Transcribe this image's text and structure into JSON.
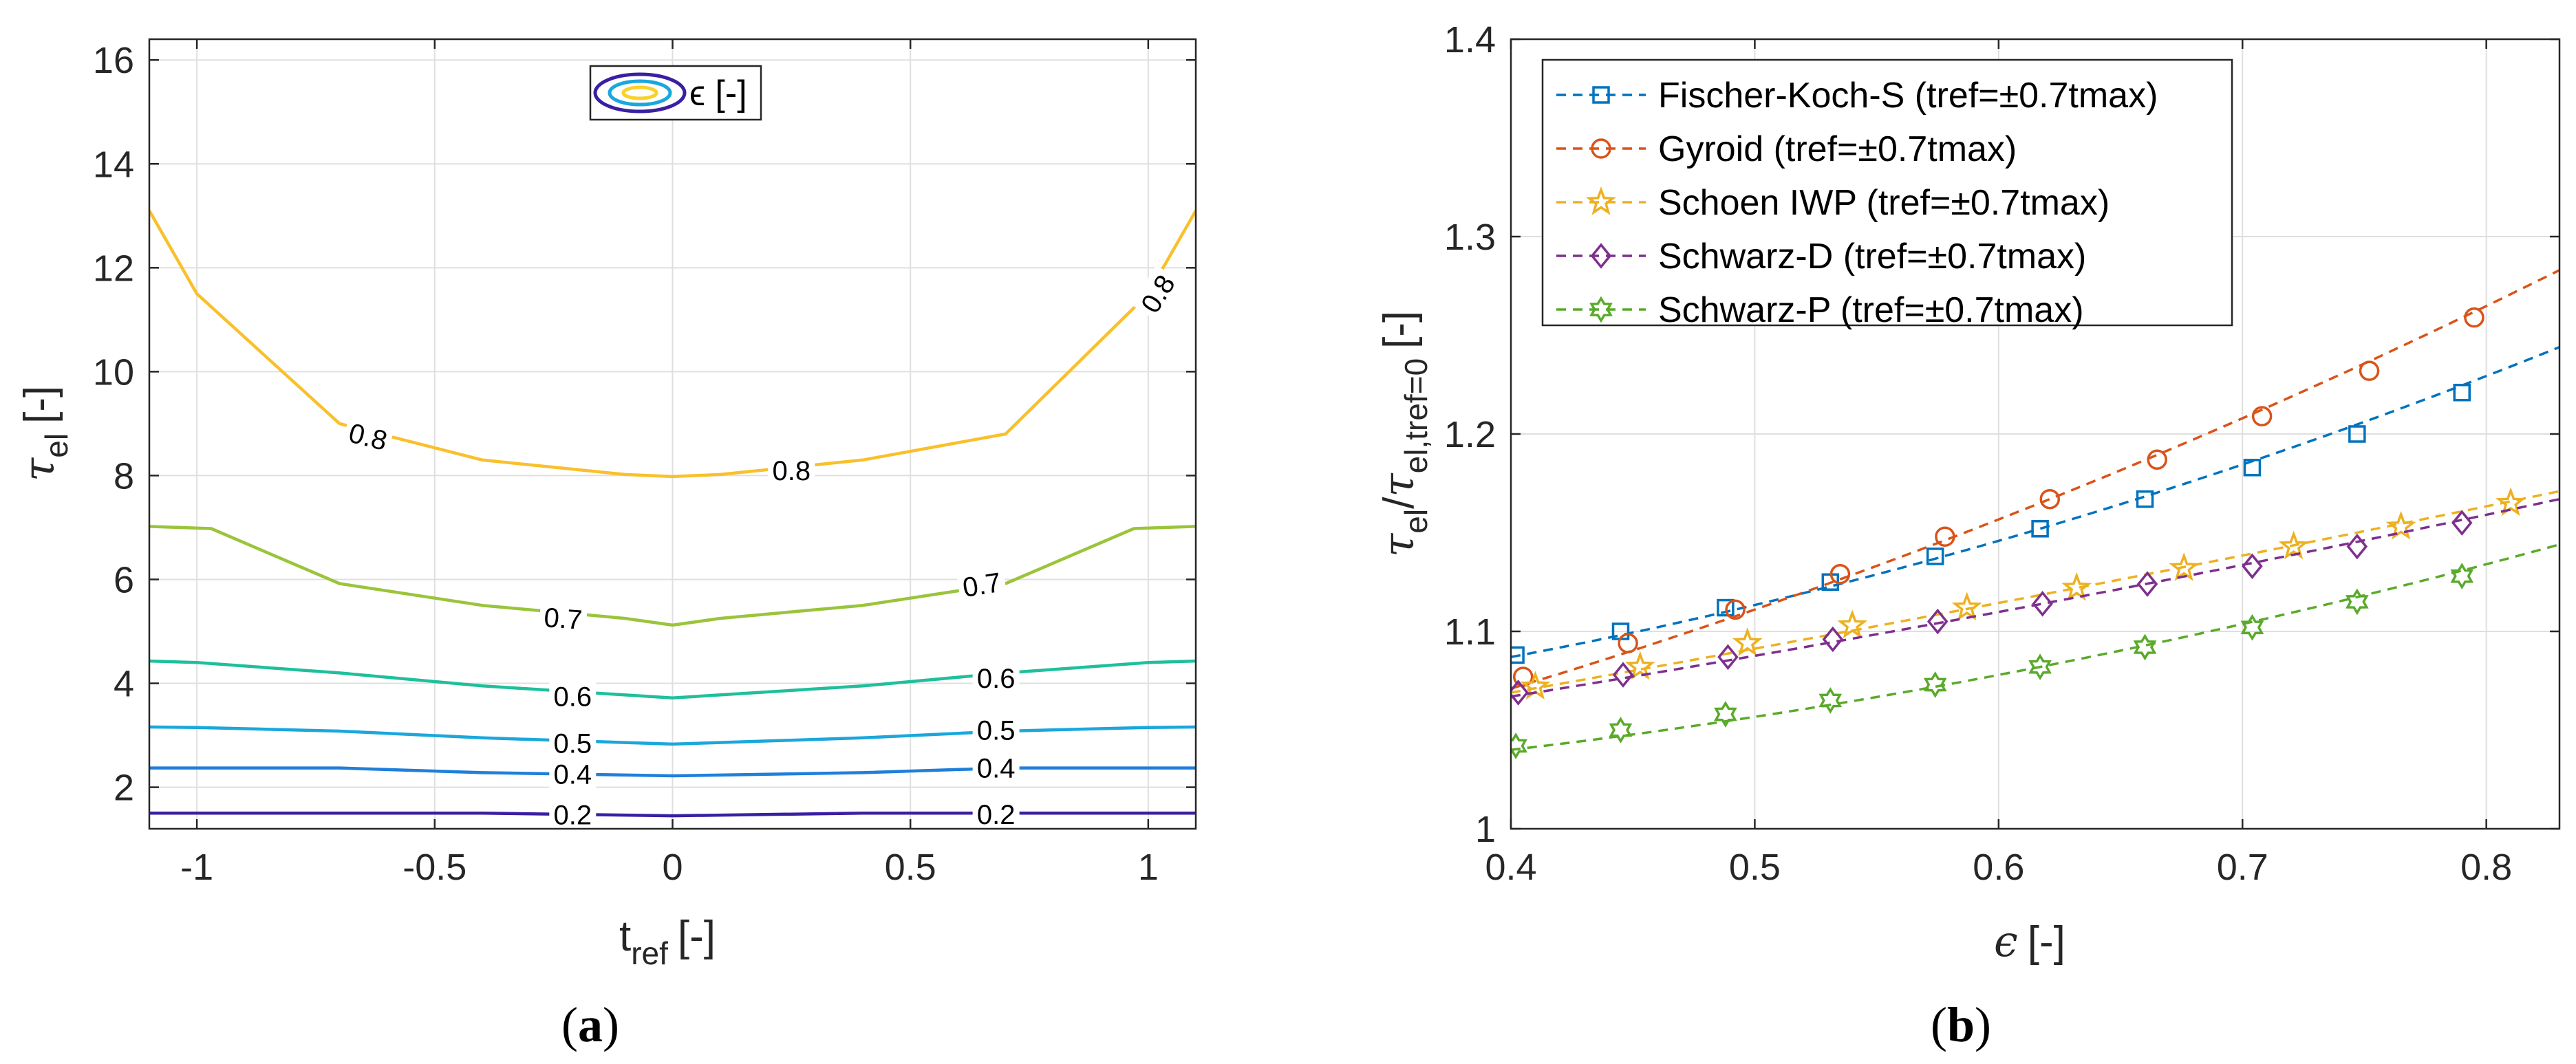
{
  "chart_data": [
    {
      "type": "contour",
      "panel_label": "a",
      "xlabel": "t",
      "xlabel_sub": "ref",
      "xlabel_unit": "[-]",
      "ylabel": "τ",
      "ylabel_sub": "el",
      "ylabel_unit": "[-]",
      "xlim": [
        -1.1,
        1.1
      ],
      "ylim": [
        1.2,
        16.4
      ],
      "xticks": [
        -1,
        -0.5,
        0,
        0.5,
        1
      ],
      "xtick_labels": [
        "-1",
        "-0.5",
        "0",
        "0.5",
        "1"
      ],
      "yticks": [
        2,
        4,
        6,
        8,
        10,
        12,
        14,
        16
      ],
      "ytick_labels": [
        "2",
        "4",
        "6",
        "8",
        "10",
        "12",
        "14",
        "16"
      ],
      "legend": {
        "label": "ϵ [-]",
        "placement": "top-center"
      },
      "contours": [
        {
          "level": "0.8",
          "color": "#f9c02b",
          "x": [
            -1.1,
            -1.0,
            -0.7,
            -0.4,
            -0.1,
            0,
            0.1,
            0.4,
            0.7,
            1.0,
            1.1
          ],
          "y": [
            13.1,
            11.5,
            9.0,
            8.3,
            8.02,
            7.98,
            8.02,
            8.3,
            8.8,
            11.5,
            13.1
          ],
          "labels": [
            [
              -0.64,
              8.75,
              14
            ],
            [
              0.25,
              8.1,
              0
            ],
            [
              1.02,
              11.5,
              -58
            ]
          ]
        },
        {
          "level": "0.7",
          "color": "#9ac43a",
          "x": [
            -1.1,
            -0.97,
            -0.7,
            -0.4,
            -0.1,
            0,
            0.1,
            0.4,
            0.7,
            0.97,
            1.1
          ],
          "y": [
            7.02,
            6.98,
            5.92,
            5.5,
            5.25,
            5.12,
            5.25,
            5.5,
            5.92,
            6.98,
            7.02
          ],
          "labels": [
            [
              -0.23,
              5.25,
              4
            ],
            [
              0.65,
              5.9,
              -9
            ]
          ]
        },
        {
          "level": "0.6",
          "color": "#1fbf9c",
          "x": [
            -1.1,
            -1.0,
            -0.7,
            -0.4,
            0,
            0.4,
            0.7,
            1.0,
            1.1
          ],
          "y": [
            4.43,
            4.4,
            4.2,
            3.95,
            3.72,
            3.95,
            4.2,
            4.4,
            4.43
          ],
          "labels": [
            [
              -0.21,
              3.75,
              0
            ],
            [
              0.68,
              4.1,
              0
            ]
          ]
        },
        {
          "level": "0.5",
          "color": "#1aa7dc",
          "x": [
            -1.1,
            -1.0,
            -0.7,
            -0.4,
            0,
            0.4,
            0.7,
            1.0,
            1.1
          ],
          "y": [
            3.16,
            3.15,
            3.08,
            2.95,
            2.83,
            2.95,
            3.08,
            3.15,
            3.16
          ],
          "labels": [
            [
              -0.21,
              2.85,
              0
            ],
            [
              0.68,
              3.1,
              0
            ]
          ]
        },
        {
          "level": "0.4",
          "color": "#1f7fd9",
          "x": [
            -1.1,
            -0.7,
            -0.4,
            0,
            0.4,
            0.7,
            1.1
          ],
          "y": [
            2.37,
            2.37,
            2.28,
            2.22,
            2.28,
            2.37,
            2.37
          ],
          "labels": [
            [
              -0.21,
              2.25,
              0
            ],
            [
              0.68,
              2.37,
              0
            ]
          ]
        },
        {
          "level": "0.2",
          "color": "#3a1fa2",
          "x": [
            -1.1,
            -0.4,
            0,
            0.4,
            1.1
          ],
          "y": [
            1.5,
            1.5,
            1.45,
            1.5,
            1.5
          ],
          "labels": [
            [
              -0.21,
              1.47,
              0
            ],
            [
              0.68,
              1.48,
              0
            ]
          ]
        }
      ]
    },
    {
      "type": "line",
      "panel_label": "b",
      "xlabel": "ϵ",
      "xlabel_unit": "[-]",
      "ylabel": "τ",
      "ylabel_sub": "el",
      "ylabel_den_sub": "el,tref=0",
      "ylabel_unit": "[-]",
      "xlim": [
        0.4,
        0.83
      ],
      "ylim": [
        1.0,
        1.4
      ],
      "xticks": [
        0.4,
        0.5,
        0.6,
        0.7,
        0.8
      ],
      "xtick_labels": [
        "0.4",
        "0.5",
        "0.6",
        "0.7",
        "0.8"
      ],
      "yticks": [
        1.0,
        1.1,
        1.2,
        1.3,
        1.4
      ],
      "ytick_labels": [
        "1",
        "1.1",
        "1.2",
        "1.3",
        "1.4"
      ],
      "legend_placement": "top-left",
      "series": [
        {
          "name": "Fischer-Koch-S (tref=±0.7tmax)",
          "color": "#0072bd",
          "marker": "square",
          "x": [
            0.402,
            0.445,
            0.488,
            0.531,
            0.574,
            0.617,
            0.66,
            0.704,
            0.747,
            0.79
          ],
          "y": [
            1.088,
            1.1,
            1.112,
            1.125,
            1.138,
            1.152,
            1.167,
            1.183,
            1.2,
            1.221
          ],
          "line_x": [
            0.4,
            0.83
          ],
          "line_y": [
            1.087,
            1.244
          ]
        },
        {
          "name": "Gyroid (tref=±0.7tmax)",
          "color": "#d95319",
          "marker": "circle",
          "x": [
            0.405,
            0.448,
            0.492,
            0.535,
            0.578,
            0.621,
            0.665,
            0.708,
            0.752,
            0.795
          ],
          "y": [
            1.077,
            1.094,
            1.111,
            1.129,
            1.148,
            1.167,
            1.187,
            1.209,
            1.232,
            1.259
          ],
          "line_x": [
            0.4,
            0.83
          ],
          "line_y": [
            1.071,
            1.283
          ]
        },
        {
          "name": "Schoen IWP (tref=±0.7tmax)",
          "color": "#edb120",
          "marker": "star",
          "x": [
            0.41,
            0.453,
            0.497,
            0.54,
            0.587,
            0.632,
            0.676,
            0.721,
            0.765,
            0.81
          ],
          "y": [
            1.072,
            1.082,
            1.094,
            1.103,
            1.112,
            1.122,
            1.132,
            1.143,
            1.153,
            1.165
          ],
          "line_x": [
            0.4,
            0.83
          ],
          "line_y": [
            1.069,
            1.171
          ]
        },
        {
          "name": "Schwarz-D (tref=±0.7tmax)",
          "color": "#7e2f8e",
          "marker": "diamond",
          "x": [
            0.403,
            0.446,
            0.489,
            0.532,
            0.575,
            0.618,
            0.661,
            0.704,
            0.747,
            0.79
          ],
          "y": [
            1.069,
            1.078,
            1.087,
            1.096,
            1.105,
            1.114,
            1.124,
            1.133,
            1.143,
            1.155
          ],
          "line_x": [
            0.4,
            0.83
          ],
          "line_y": [
            1.067,
            1.167
          ]
        },
        {
          "name": "Schwarz-P (tref=±0.7tmax)",
          "color": "#5aaa2a",
          "marker": "hexagram",
          "x": [
            0.402,
            0.445,
            0.488,
            0.531,
            0.574,
            0.617,
            0.66,
            0.704,
            0.747,
            0.79
          ],
          "y": [
            1.042,
            1.05,
            1.058,
            1.065,
            1.073,
            1.082,
            1.092,
            1.102,
            1.115,
            1.128
          ],
          "line_x": [
            0.4,
            0.83
          ],
          "line_y": [
            1.04,
            1.144
          ]
        }
      ]
    }
  ]
}
